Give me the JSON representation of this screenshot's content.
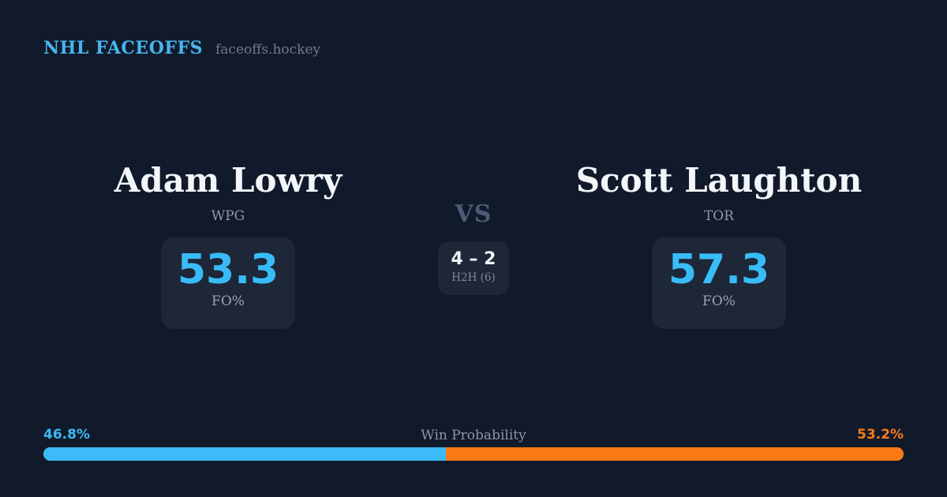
{
  "header": {
    "brand": "NHL FACEOFFS",
    "site": "faceoffs.hockey"
  },
  "matchup": {
    "vs_label": "VS",
    "h2h": {
      "score": "4 – 2",
      "label": "H2H (6)"
    },
    "players": [
      {
        "name": "Adam Lowry",
        "team": "WPG",
        "fo_pct": "53.3",
        "stat_label": "FO%"
      },
      {
        "name": "Scott Laughton",
        "team": "TOR",
        "fo_pct": "57.3",
        "stat_label": "FO%"
      }
    ]
  },
  "win_probability": {
    "label": "Win Probability",
    "left_pct_text": "46.8%",
    "right_pct_text": "53.2%",
    "left_value": 46.8,
    "right_value": 53.2,
    "left_color": "#3cbaf6",
    "right_color": "#f97b16"
  },
  "colors": {
    "background": "#111a2b",
    "card": "#1e2737",
    "accent_blue": "#38bcf8",
    "accent_orange": "#f97b16",
    "brand_blue": "#48b4ec"
  }
}
